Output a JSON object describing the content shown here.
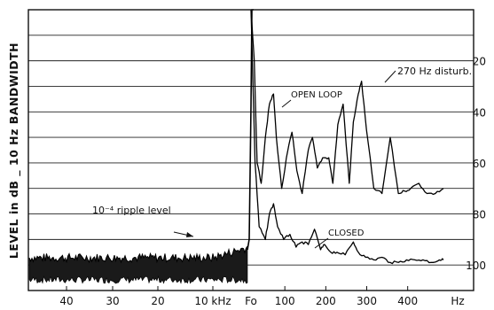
{
  "chart_data": {
    "type": "line",
    "title": "",
    "ylabel": "LEVEL in dB _ 10 Hz BANDWIDTH",
    "xlabel": "",
    "x_ticks_left": [
      "40",
      "30",
      "20",
      "10 kHz"
    ],
    "carrier_label": "Fo",
    "x_ticks_right": [
      "100",
      "200",
      "300",
      "400"
    ],
    "x_unit": "Hz",
    "y_ticks": [
      20,
      40,
      60,
      80,
      100
    ],
    "ylim": [
      0,
      110
    ],
    "grid": true,
    "annotations": {
      "ripple": "10⁻⁴ ripple level",
      "open_loop": "OPEN LOOP",
      "closed": "CLOSED",
      "disturb": "270 Hz disturb."
    },
    "series": [
      {
        "name": "OPEN LOOP",
        "x": [
          0,
          8,
          15,
          25,
          35,
          45,
          55,
          62,
          75,
          90,
          100,
          112,
          125,
          140,
          150,
          162,
          175,
          190,
          200,
          212,
          225,
          240,
          250,
          262,
          270,
          282,
          300,
          320,
          340,
          360,
          375,
          390,
          410,
          430,
          450,
          470
        ],
        "y": [
          0,
          20,
          60,
          68,
          50,
          37,
          33,
          50,
          70,
          55,
          48,
          63,
          72,
          55,
          50,
          62,
          58,
          58,
          68,
          45,
          37,
          68,
          44,
          33,
          28,
          47,
          70,
          72,
          50,
          72,
          71,
          70,
          68,
          72,
          72,
          70
        ]
      },
      {
        "name": "CLOSED",
        "x": [
          0,
          10,
          20,
          35,
          45,
          55,
          65,
          80,
          95,
          110,
          125,
          140,
          155,
          170,
          180,
          195,
          210,
          230,
          250,
          262,
          280,
          300,
          320,
          340,
          360,
          380,
          400,
          420,
          440,
          460,
          470
        ],
        "y": [
          0,
          60,
          85,
          90,
          80,
          76,
          85,
          90,
          88,
          93,
          91,
          92,
          86,
          94,
          92,
          95,
          95,
          96,
          91,
          95,
          97,
          98,
          97,
          99,
          99,
          98,
          98,
          98,
          99,
          98,
          98
        ]
      }
    ]
  }
}
